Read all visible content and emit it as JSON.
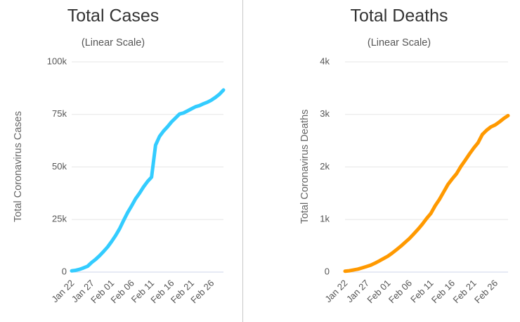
{
  "chart_data": [
    {
      "type": "line",
      "title": "Total Cases",
      "subtitle": "(Linear Scale)",
      "ylabel": "Total Coronavirus Cases",
      "xlabel": "",
      "color": "#33ccff",
      "ylim": [
        0,
        100000
      ],
      "yticks": [
        0,
        25000,
        50000,
        75000,
        100000
      ],
      "ytick_labels": [
        "0",
        "25k",
        "50k",
        "75k",
        "100k"
      ],
      "xtick_labels": [
        "Jan 22",
        "Jan 27",
        "Feb 01",
        "Feb 06",
        "Feb 11",
        "Feb 16",
        "Feb 21",
        "Feb 26"
      ],
      "x": [
        "Jan 22",
        "Jan 23",
        "Jan 24",
        "Jan 25",
        "Jan 26",
        "Jan 27",
        "Jan 28",
        "Jan 29",
        "Jan 30",
        "Jan 31",
        "Feb 01",
        "Feb 02",
        "Feb 03",
        "Feb 04",
        "Feb 05",
        "Feb 06",
        "Feb 07",
        "Feb 08",
        "Feb 09",
        "Feb 10",
        "Feb 11",
        "Feb 12",
        "Feb 13",
        "Feb 14",
        "Feb 15",
        "Feb 16",
        "Feb 17",
        "Feb 18",
        "Feb 19",
        "Feb 20",
        "Feb 21",
        "Feb 22",
        "Feb 23",
        "Feb 24",
        "Feb 25",
        "Feb 26",
        "Feb 27",
        "Feb 28",
        "Feb 29"
      ],
      "values": [
        580,
        845,
        1317,
        2015,
        2800,
        4581,
        6058,
        7813,
        9823,
        11950,
        14553,
        17391,
        20630,
        24554,
        28276,
        31481,
        34886,
        37558,
        40554,
        43103,
        45171,
        60381,
        64543,
        67099,
        69146,
        71442,
        73312,
        75184,
        75700,
        76677,
        77673,
        78651,
        79205,
        80087,
        80828,
        81820,
        83112,
        84615,
        86604
      ]
    },
    {
      "type": "line",
      "title": "Total Deaths",
      "subtitle": "(Linear Scale)",
      "ylabel": "Total Coronavirus Deaths",
      "xlabel": "",
      "color": "#ff9900",
      "ylim": [
        0,
        4000
      ],
      "yticks": [
        0,
        1000,
        2000,
        3000,
        4000
      ],
      "ytick_labels": [
        "0",
        "1k",
        "2k",
        "3k",
        "4k"
      ],
      "xtick_labels": [
        "Jan 22",
        "Jan 27",
        "Feb 01",
        "Feb 06",
        "Feb 11",
        "Feb 16",
        "Feb 21",
        "Feb 26"
      ],
      "x": [
        "Jan 22",
        "Jan 23",
        "Jan 24",
        "Jan 25",
        "Jan 26",
        "Jan 27",
        "Jan 28",
        "Jan 29",
        "Jan 30",
        "Jan 31",
        "Feb 01",
        "Feb 02",
        "Feb 03",
        "Feb 04",
        "Feb 05",
        "Feb 06",
        "Feb 07",
        "Feb 08",
        "Feb 09",
        "Feb 10",
        "Feb 11",
        "Feb 12",
        "Feb 13",
        "Feb 14",
        "Feb 15",
        "Feb 16",
        "Feb 17",
        "Feb 18",
        "Feb 19",
        "Feb 20",
        "Feb 21",
        "Feb 22",
        "Feb 23",
        "Feb 24",
        "Feb 25",
        "Feb 26",
        "Feb 27",
        "Feb 28",
        "Feb 29"
      ],
      "values": [
        17,
        25,
        41,
        56,
        80,
        106,
        132,
        170,
        213,
        259,
        304,
        362,
        426,
        492,
        565,
        638,
        724,
        813,
        910,
        1018,
        1115,
        1261,
        1383,
        1526,
        1669,
        1775,
        1873,
        2009,
        2126,
        2247,
        2360,
        2460,
        2618,
        2699,
        2763,
        2800,
        2858,
        2923,
        2977
      ]
    }
  ]
}
